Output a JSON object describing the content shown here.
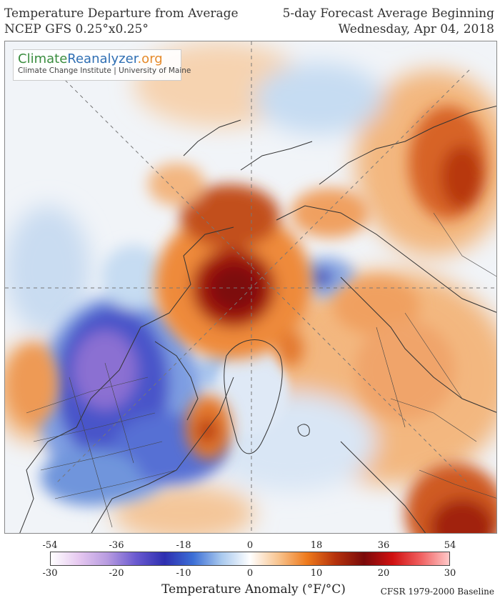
{
  "header": {
    "title_line1": "Temperature Departure from Average",
    "title_line2": "NCEP GFS 0.25°x0.25°",
    "forecast_line1": "5-day Forecast Average Beginning",
    "forecast_line2": "Wednesday, Apr 04, 2018"
  },
  "logo": {
    "part1": "Climate",
    "part2": "Reanalyzer",
    "part3": ".org",
    "subtitle": "Climate Change Institute | University of Maine"
  },
  "map": {
    "projection": "north-polar-stereographic",
    "colors": {
      "ocean_neutral": "#f1f4f8",
      "warm_light": "#f6cfa7",
      "warm": "#ee8a3a",
      "warm_strong": "#b8390e",
      "hot": "#8a0f0c",
      "cool_light": "#c6dcf2",
      "cool": "#6f95dc",
      "cold": "#3c3fb8",
      "very_cold": "#8a70d0"
    }
  },
  "colorbar": {
    "fahrenheit_ticks": [
      "-54",
      "-36",
      "-18",
      "0",
      "18",
      "36",
      "54"
    ],
    "celsius_ticks": [
      "-30",
      "-20",
      "-10",
      "0",
      "10",
      "20",
      "30"
    ],
    "label": "Temperature Anomaly (°F/°C)",
    "gradient_stops": [
      "#ffffff",
      "#e6c8f0",
      "#b79be0",
      "#6a5ad0",
      "#2e2fb0",
      "#3c6fd6",
      "#a9c9ee",
      "#ffffff",
      "#f8c48f",
      "#ee7a1c",
      "#b5320c",
      "#7a0a0a",
      "#d01010",
      "#f06060",
      "#ffc8c8"
    ]
  },
  "baseline": "CFSR 1979-2000 Baseline"
}
